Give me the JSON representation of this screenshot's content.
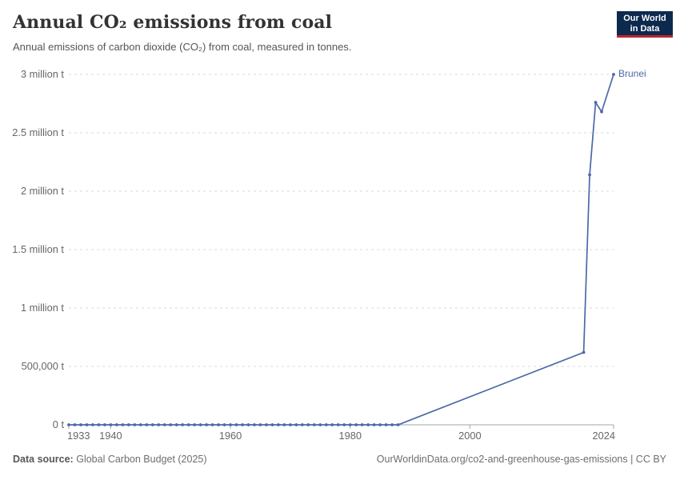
{
  "header": {
    "title": "Annual CO₂ emissions from coal",
    "subtitle": "Annual emissions of carbon dioxide (CO₂) from coal, measured in tonnes.",
    "logo": {
      "line1": "Our World",
      "line2": "in Data"
    }
  },
  "chart_data": {
    "type": "line",
    "title": "Annual CO₂ emissions from coal",
    "xlabel": "",
    "ylabel": "",
    "xlim": [
      1933,
      2024
    ],
    "ylim": [
      0,
      3000000
    ],
    "grid": "horizontal-dashed",
    "legend_position": "end-of-line-label",
    "x_ticks": [
      "1933",
      "1940",
      "1960",
      "1980",
      "2000",
      "2024"
    ],
    "x_tick_years": [
      1933,
      1940,
      1960,
      1980,
      2000,
      2024
    ],
    "y_ticks": [
      {
        "value": 0,
        "label": "0 t"
      },
      {
        "value": 500000,
        "label": "500,000 t"
      },
      {
        "value": 1000000,
        "label": "1 million t"
      },
      {
        "value": 1500000,
        "label": "1.5 million t"
      },
      {
        "value": 2000000,
        "label": "2 million t"
      },
      {
        "value": 2500000,
        "label": "2.5 million t"
      },
      {
        "value": 3000000,
        "label": "3 million t"
      }
    ],
    "series": [
      {
        "name": "Brunei",
        "color": "#4b69a8",
        "points": [
          [
            1933,
            0
          ],
          [
            1934,
            0
          ],
          [
            1935,
            0
          ],
          [
            1936,
            0
          ],
          [
            1937,
            0
          ],
          [
            1938,
            0
          ],
          [
            1939,
            0
          ],
          [
            1940,
            0
          ],
          [
            1941,
            0
          ],
          [
            1942,
            0
          ],
          [
            1943,
            0
          ],
          [
            1944,
            0
          ],
          [
            1945,
            0
          ],
          [
            1946,
            0
          ],
          [
            1947,
            0
          ],
          [
            1948,
            0
          ],
          [
            1949,
            0
          ],
          [
            1950,
            0
          ],
          [
            1951,
            0
          ],
          [
            1952,
            0
          ],
          [
            1953,
            0
          ],
          [
            1954,
            0
          ],
          [
            1955,
            0
          ],
          [
            1956,
            0
          ],
          [
            1957,
            0
          ],
          [
            1958,
            0
          ],
          [
            1959,
            0
          ],
          [
            1960,
            0
          ],
          [
            1961,
            0
          ],
          [
            1962,
            0
          ],
          [
            1963,
            0
          ],
          [
            1964,
            0
          ],
          [
            1965,
            0
          ],
          [
            1966,
            0
          ],
          [
            1967,
            0
          ],
          [
            1968,
            0
          ],
          [
            1969,
            0
          ],
          [
            1970,
            0
          ],
          [
            1971,
            0
          ],
          [
            1972,
            0
          ],
          [
            1973,
            0
          ],
          [
            1974,
            0
          ],
          [
            1975,
            0
          ],
          [
            1976,
            0
          ],
          [
            1977,
            0
          ],
          [
            1978,
            0
          ],
          [
            1979,
            0
          ],
          [
            1980,
            0
          ],
          [
            1981,
            0
          ],
          [
            1982,
            0
          ],
          [
            1983,
            0
          ],
          [
            1984,
            0
          ],
          [
            1985,
            0
          ],
          [
            1986,
            0
          ],
          [
            1987,
            0
          ],
          [
            1988,
            0
          ],
          [
            2019,
            620000
          ],
          [
            2020,
            2140000
          ],
          [
            2021,
            2760000
          ],
          [
            2022,
            2680000
          ],
          [
            2024,
            3000000
          ]
        ]
      }
    ]
  },
  "footer": {
    "source_label": "Data source:",
    "source_value": "Global Carbon Budget (2025)",
    "link": "OurWorldinData.org/co2-and-greenhouse-gas-emissions | CC BY"
  },
  "colors": {
    "series_line": "#4b69a8",
    "gridline": "#d9d9d9",
    "axis_line": "#a5a5a5",
    "tick_text": "#666666",
    "title_text": "#333333",
    "subtitle_text": "#555555",
    "logo_background": "#0c2a4e",
    "logo_red_bar": "#c0232c"
  }
}
